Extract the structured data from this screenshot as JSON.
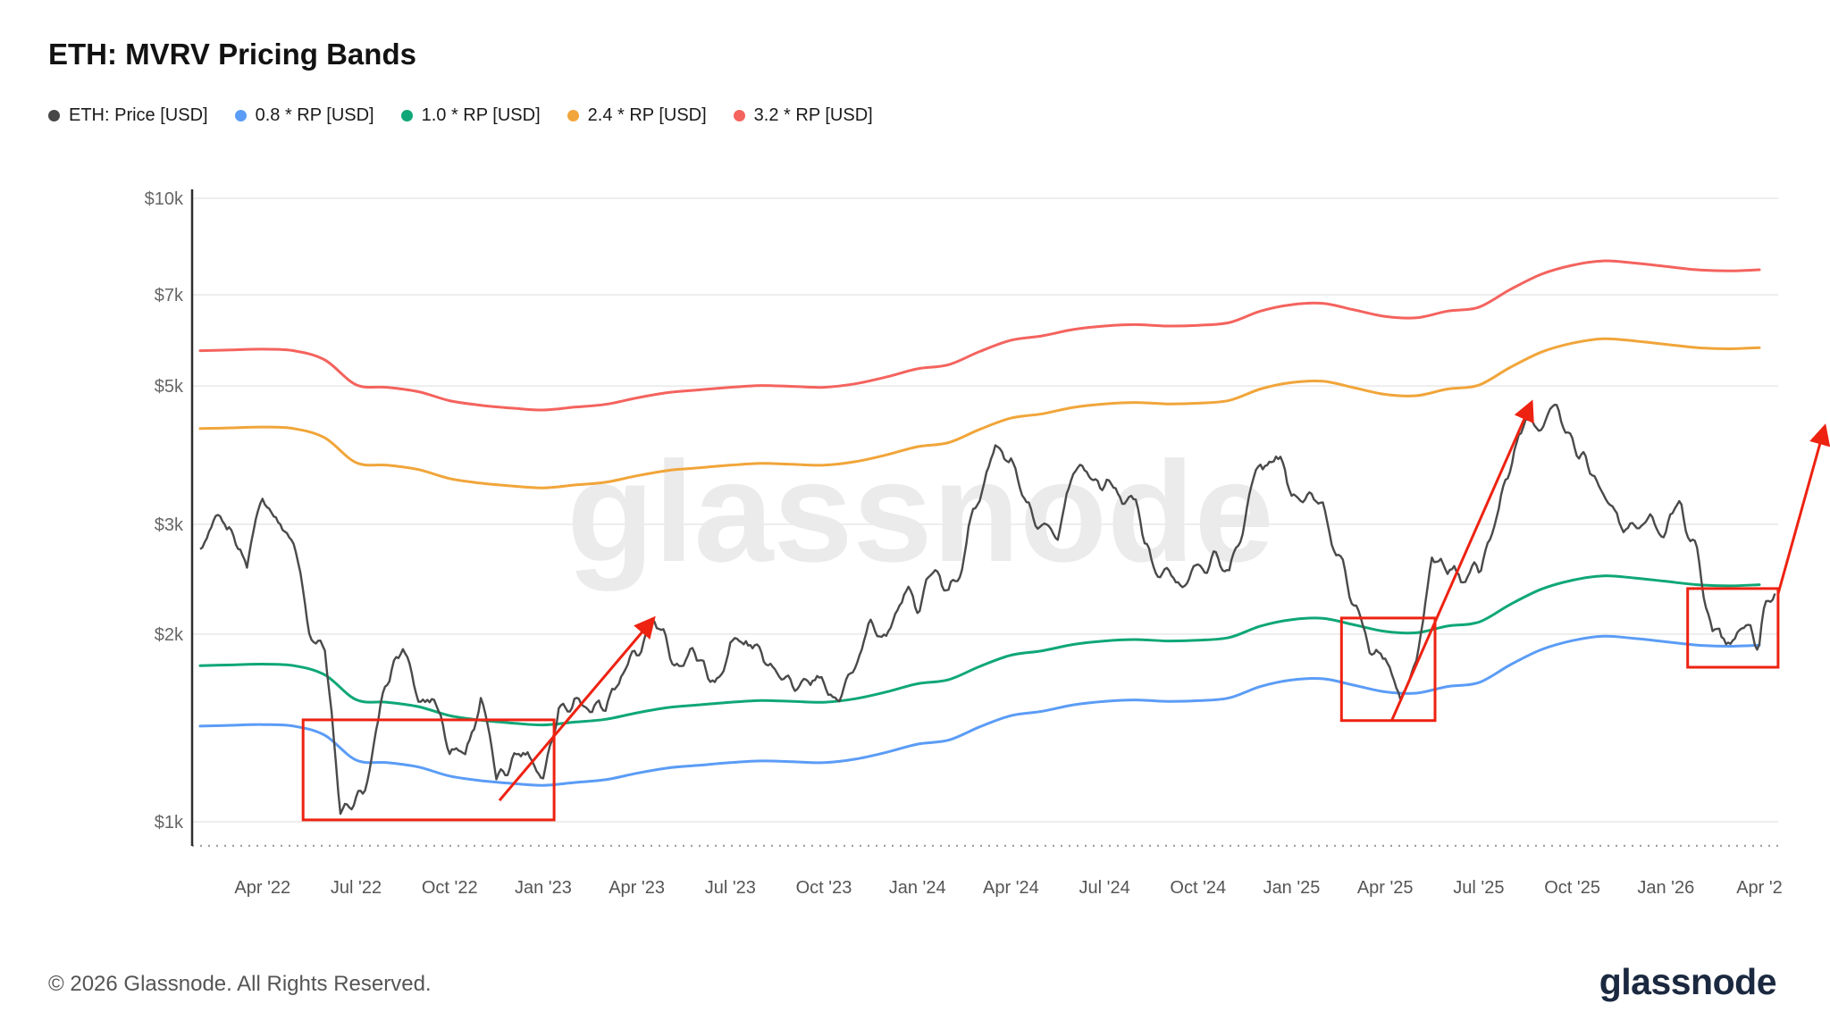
{
  "header": {
    "title": "ETH: MVRV Pricing Bands"
  },
  "watermark": "glassnode",
  "footer": {
    "copyright": "© 2026 Glassnode. All Rights Reserved.",
    "logo": "glassnode"
  },
  "chart_data": {
    "type": "line",
    "title": "ETH: MVRV Pricing Bands",
    "grid": "horizontal",
    "legend_position": "top-left",
    "legend": [
      {
        "label": "ETH: Price [USD]",
        "color": "#474747"
      },
      {
        "label": "0.8 * RP [USD]",
        "color": "#5b9cf6"
      },
      {
        "label": "1.0 * RP [USD]",
        "color": "#0fa777"
      },
      {
        "label": "2.4 * RP [USD]",
        "color": "#f1a53a"
      },
      {
        "label": "3.2 * RP [USD]",
        "color": "#f4635e"
      }
    ],
    "y_axis": {
      "scale": "log",
      "range": [
        900,
        11000
      ],
      "ticks": [
        {
          "label": "$10k",
          "value": 10000
        },
        {
          "label": "$7k",
          "value": 7000
        },
        {
          "label": "$5k",
          "value": 5000
        },
        {
          "label": "$3k",
          "value": 3000
        },
        {
          "label": "$2k",
          "value": 2000
        },
        {
          "label": "$1k",
          "value": 1000
        }
      ],
      "floor_line": {
        "style": "dotted",
        "value": 915
      }
    },
    "x_axis": {
      "start_month": "2022-02",
      "end_month": "2026-04",
      "ticks": [
        {
          "label": "Apr '22",
          "m": 2
        },
        {
          "label": "Jul '22",
          "m": 5
        },
        {
          "label": "Oct '22",
          "m": 8
        },
        {
          "label": "Jan '23",
          "m": 11
        },
        {
          "label": "Apr '23",
          "m": 14
        },
        {
          "label": "Jul '23",
          "m": 17
        },
        {
          "label": "Oct '23",
          "m": 20
        },
        {
          "label": "Jan '24",
          "m": 23
        },
        {
          "label": "Apr '24",
          "m": 26
        },
        {
          "label": "Jul '24",
          "m": 29
        },
        {
          "label": "Oct '24",
          "m": 32
        },
        {
          "label": "Jan '25",
          "m": 35
        },
        {
          "label": "Apr '25",
          "m": 38
        },
        {
          "label": "Jul '25",
          "m": 41
        },
        {
          "label": "Oct '25",
          "m": 44
        },
        {
          "label": "Jan '26",
          "m": 47
        },
        {
          "label": "Apr '2",
          "m": 50
        }
      ]
    },
    "months": [
      "2022-02",
      "2022-03",
      "2022-04",
      "2022-05",
      "2022-06",
      "2022-07",
      "2022-08",
      "2022-09",
      "2022-10",
      "2022-11",
      "2022-12",
      "2023-01",
      "2023-02",
      "2023-03",
      "2023-04",
      "2023-05",
      "2023-06",
      "2023-07",
      "2023-08",
      "2023-09",
      "2023-10",
      "2023-11",
      "2023-12",
      "2024-01",
      "2024-02",
      "2024-03",
      "2024-04",
      "2024-05",
      "2024-06",
      "2024-07",
      "2024-08",
      "2024-09",
      "2024-10",
      "2024-11",
      "2024-12",
      "2025-01",
      "2025-02",
      "2025-03",
      "2025-04",
      "2025-05",
      "2025-06",
      "2025-07",
      "2025-08",
      "2025-09",
      "2025-10",
      "2025-11",
      "2025-12",
      "2026-01",
      "2026-02",
      "2026-03",
      "2026-04"
    ],
    "series": {
      "realized_price": {
        "name": "RP [USD]",
        "interval": "monthly",
        "values": [
          1780,
          1785,
          1790,
          1780,
          1720,
          1570,
          1555,
          1530,
          1480,
          1455,
          1440,
          1430,
          1445,
          1460,
          1495,
          1525,
          1540,
          1555,
          1565,
          1560,
          1555,
          1575,
          1615,
          1665,
          1690,
          1775,
          1850,
          1880,
          1925,
          1950,
          1960,
          1950,
          1955,
          1975,
          2060,
          2110,
          2120,
          2070,
          2020,
          2010,
          2060,
          2090,
          2230,
          2360,
          2440,
          2480,
          2460,
          2430,
          2400,
          2390,
          2400
        ]
      },
      "bands": [
        {
          "name": "0.8 * RP [USD]",
          "multiplier": 0.8,
          "color": "#5b9cf6"
        },
        {
          "name": "1.0 * RP [USD]",
          "multiplier": 1.0,
          "color": "#0fa777"
        },
        {
          "name": "2.4 * RP [USD]",
          "multiplier": 2.4,
          "color": "#f1a53a"
        },
        {
          "name": "3.2 * RP [USD]",
          "multiplier": 3.2,
          "color": "#f4635e"
        }
      ],
      "price": {
        "name": "ETH: Price [USD]",
        "color": "#4a4a4a",
        "interval": "semi-monthly",
        "values": [
          2700,
          2900,
          2950,
          2600,
          3450,
          3050,
          2830,
          2050,
          1940,
          1010,
          1060,
          1230,
          1680,
          1900,
          1550,
          1600,
          1330,
          1300,
          1570,
          1160,
          1280,
          1310,
          1200,
          1550,
          1590,
          1510,
          1570,
          1680,
          1820,
          2100,
          1870,
          1820,
          1870,
          1650,
          1930,
          1930,
          1860,
          1820,
          1650,
          1620,
          1670,
          1560,
          1800,
          2060,
          2050,
          2220,
          2280,
          2510,
          2280,
          2780,
          3380,
          3950,
          3650,
          3050,
          3000,
          2940,
          3760,
          3550,
          3440,
          3450,
          3230,
          2570,
          2510,
          2320,
          2600,
          2620,
          2520,
          3100,
          3700,
          3900,
          3340,
          3250,
          3300,
          2680,
          2230,
          1900,
          1820,
          1560,
          1790,
          2600,
          2530,
          2550,
          2490,
          3000,
          3700,
          4700,
          4350,
          4550,
          4150,
          3800,
          3400,
          3100,
          2900,
          3050,
          3000,
          3300,
          2600,
          2050,
          1950,
          2050,
          1980,
          2380
        ]
      }
    },
    "annotations": {
      "color": "#ee2211",
      "boxes": [
        {
          "m0": 3.3,
          "m1": 11.35,
          "v_low": 1007,
          "v_high": 1457
        },
        {
          "m0": 36.6,
          "m1": 39.6,
          "v_low": 1453,
          "v_high": 2122
        },
        {
          "m0": 47.7,
          "m1": 50.6,
          "v_low": 1769,
          "v_high": 2366
        }
      ],
      "arrows": [
        {
          "m0": 9.6,
          "v0": 1082,
          "m1": 14.55,
          "v1": 2121
        },
        {
          "m0": 38.2,
          "v0": 1450,
          "m1": 42.7,
          "v1": 4712
        },
        {
          "m0": 50.6,
          "v0": 2320,
          "m1": 52.1,
          "v1": 4312
        }
      ]
    }
  }
}
